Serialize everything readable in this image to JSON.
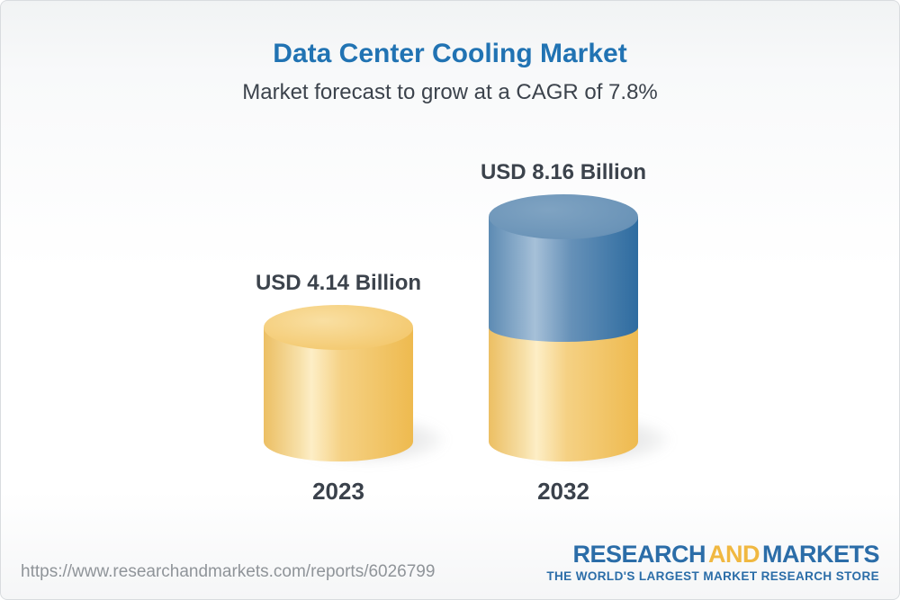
{
  "header": {
    "title": "Data Center Cooling Market",
    "subtitle": "Market forecast to grow at a CAGR of 7.8%"
  },
  "chart_data": {
    "type": "bar",
    "subtype": "3d-cylinder",
    "title": "Data Center Cooling Market",
    "subtitle": "Market forecast to grow at a CAGR of 7.8%",
    "categories": [
      "2023",
      "2032"
    ],
    "values": [
      4.14,
      8.16
    ],
    "value_labels": [
      "USD 4.14 Billion",
      "USD 8.16 Billion"
    ],
    "unit": "USD Billion",
    "cagr": "7.8%",
    "grid": false,
    "legend_position": "none",
    "colors": {
      "base_segment_gold": "#EEBA4F",
      "growth_segment_blue": "#2E6CA0",
      "title_blue": "#2173B3",
      "text_dark": "#3C434C"
    }
  },
  "footer": {
    "url": "https://www.researchandmarkets.com/reports/6026799",
    "logo": {
      "word1": "RESEARCH",
      "word2": "AND",
      "word3": "MARKETS",
      "tagline": "THE WORLD'S LARGEST MARKET RESEARCH STORE",
      "blue": "#2B6DA8",
      "gold": "#F0B841"
    }
  }
}
